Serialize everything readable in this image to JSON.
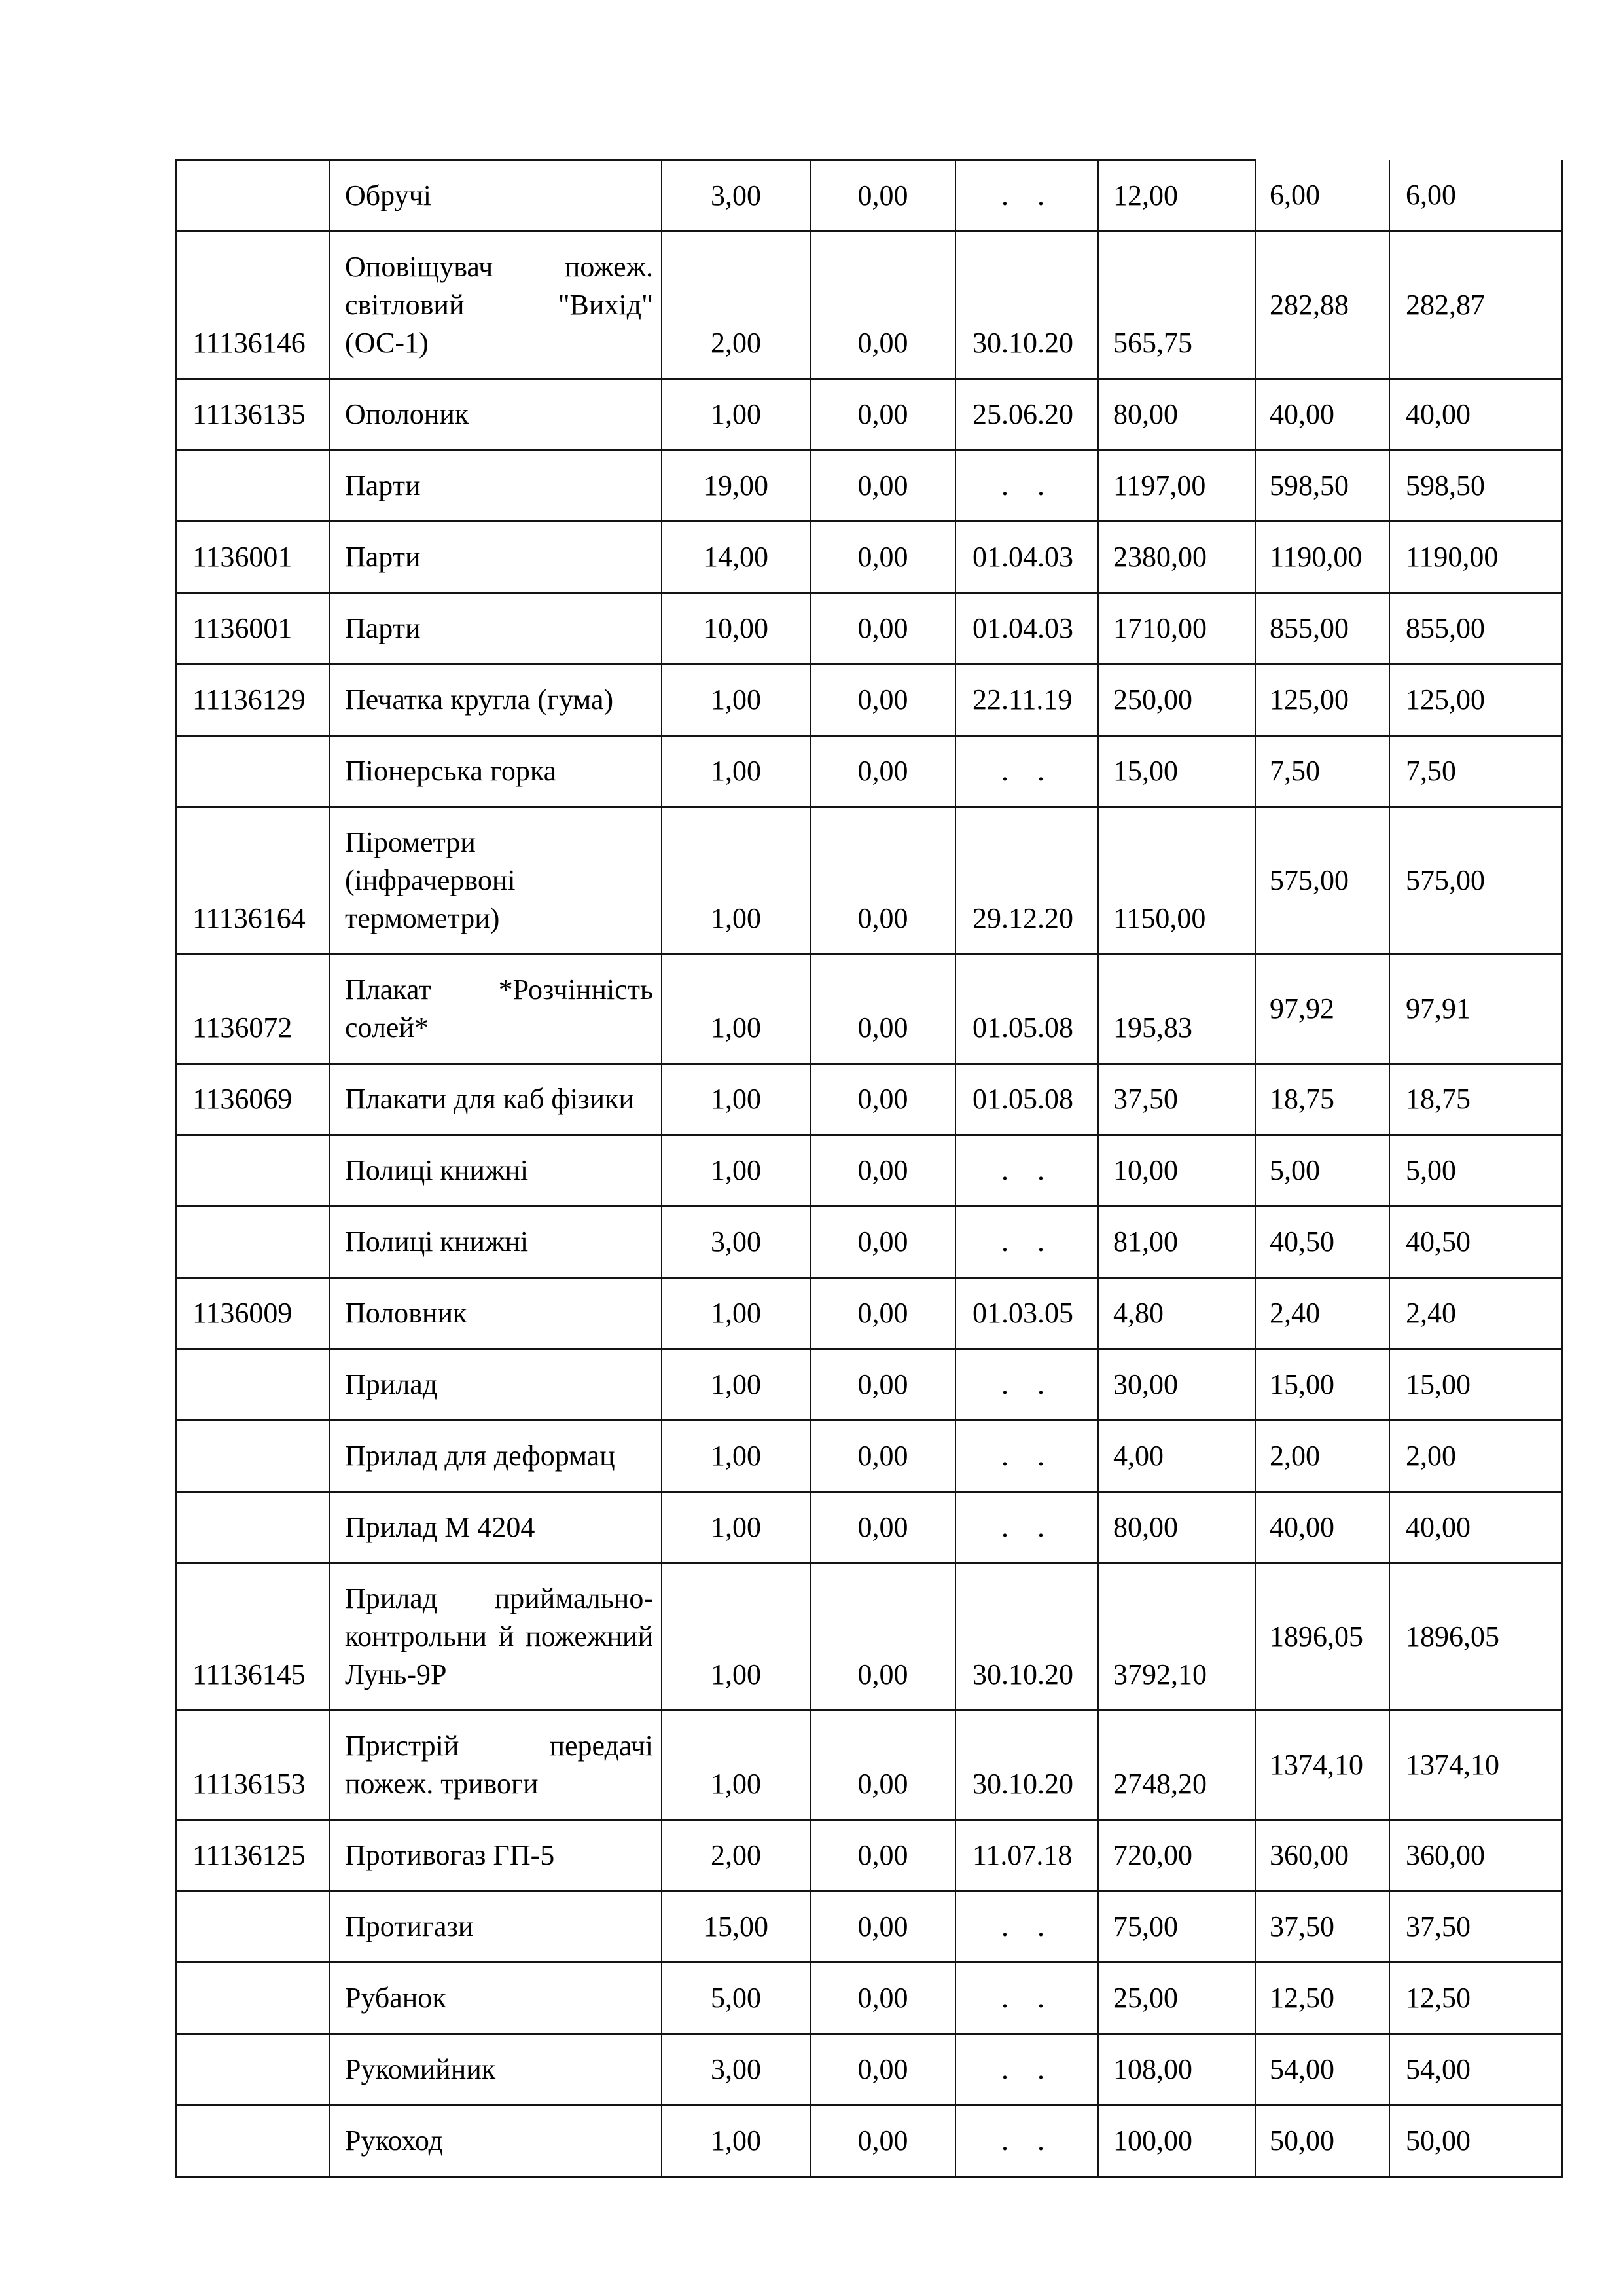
{
  "table": {
    "columns": [
      "code",
      "name",
      "qty",
      "zero",
      "date",
      "total",
      "half1",
      "half2"
    ],
    "rows": [
      {
        "code": "",
        "name": "Обручі",
        "qty": "3,00",
        "zero": "0,00",
        "date": "    .    .",
        "total": "12,00",
        "half1": "6,00",
        "half2": "6,00"
      },
      {
        "code": "11136146",
        "name": "Оповіщувач пожеж. світловий \"Вихід\" (ОС-1)",
        "qty": "2,00",
        "zero": "0,00",
        "date": "30.10.20",
        "total": "565,75",
        "half1": "282,88",
        "half2": "282,87"
      },
      {
        "code": "11136135",
        "name": "Ополоник",
        "qty": "1,00",
        "zero": "0,00",
        "date": "25.06.20",
        "total": "80,00",
        "half1": "40,00",
        "half2": "40,00"
      },
      {
        "code": "",
        "name": "Парти",
        "qty": "19,00",
        "zero": "0,00",
        "date": "    .    .",
        "total": "1197,00",
        "half1": "598,50",
        "half2": "598,50"
      },
      {
        "code": "1136001",
        "name": "Парти",
        "qty": "14,00",
        "zero": "0,00",
        "date": "01.04.03",
        "total": "2380,00",
        "half1": "1190,00",
        "half2": "1190,00"
      },
      {
        "code": "1136001",
        "name": "Парти",
        "qty": "10,00",
        "zero": "0,00",
        "date": "01.04.03",
        "total": "1710,00",
        "half1": "855,00",
        "half2": "855,00"
      },
      {
        "code": "11136129",
        "name": "Печатка кругла (гума)",
        "qty": "1,00",
        "zero": "0,00",
        "date": "22.11.19",
        "total": "250,00",
        "half1": "125,00",
        "half2": "125,00"
      },
      {
        "code": "",
        "name": "Піонерська горка",
        "qty": "1,00",
        "zero": "0,00",
        "date": "    .    .",
        "total": "15,00",
        "half1": "7,50",
        "half2": "7,50"
      },
      {
        "code": "11136164",
        "name": "Пірометри (інфрачервоні термометри)",
        "qty": "1,00",
        "zero": "0,00",
        "date": "29.12.20",
        "total": "1150,00",
        "half1": "575,00",
        "half2": "575,00"
      },
      {
        "code": "1136072",
        "name": "Плакат *Розчінність солей*",
        "qty": "1,00",
        "zero": "0,00",
        "date": "01.05.08",
        "total": "195,83",
        "half1": "97,92",
        "half2": "97,91"
      },
      {
        "code": "1136069",
        "name": "Плакати для каб фізики",
        "qty": "1,00",
        "zero": "0,00",
        "date": "01.05.08",
        "total": "37,50",
        "half1": "18,75",
        "half2": "18,75"
      },
      {
        "code": "",
        "name": "Полиці книжні",
        "qty": "1,00",
        "zero": "0,00",
        "date": "    .    .",
        "total": "10,00",
        "half1": "5,00",
        "half2": "5,00"
      },
      {
        "code": "",
        "name": "Полиці книжні",
        "qty": "3,00",
        "zero": "0,00",
        "date": "    .    .",
        "total": "81,00",
        "half1": "40,50",
        "half2": "40,50"
      },
      {
        "code": "1136009",
        "name": "Половник",
        "qty": "1,00",
        "zero": "0,00",
        "date": "01.03.05",
        "total": "4,80",
        "half1": "2,40",
        "half2": "2,40"
      },
      {
        "code": "",
        "name": "Прилад",
        "qty": "1,00",
        "zero": "0,00",
        "date": "    .    .",
        "total": "30,00",
        "half1": "15,00",
        "half2": "15,00"
      },
      {
        "code": "",
        "name": "Прилад для деформац",
        "qty": "1,00",
        "zero": "0,00",
        "date": "    .    .",
        "total": "4,00",
        "half1": "2,00",
        "half2": "2,00"
      },
      {
        "code": "",
        "name": "Прилад М 4204",
        "qty": "1,00",
        "zero": "0,00",
        "date": "    .    .",
        "total": "80,00",
        "half1": "40,00",
        "half2": "40,00"
      },
      {
        "code": "11136145",
        "name": "Прилад приймально-контрольни й пожежний Лунь-9Р",
        "qty": "1,00",
        "zero": "0,00",
        "date": "30.10.20",
        "total": "3792,10",
        "half1": "1896,05",
        "half2": "1896,05"
      },
      {
        "code": "11136153",
        "name": "Пристрій передачі пожеж. тривоги",
        "qty": "1,00",
        "zero": "0,00",
        "date": "30.10.20",
        "total": "2748,20",
        "half1": "1374,10",
        "half2": "1374,10"
      },
      {
        "code": "11136125",
        "name": "Противогаз ГП-5",
        "qty": "2,00",
        "zero": "0,00",
        "date": "11.07.18",
        "total": "720,00",
        "half1": "360,00",
        "half2": "360,00"
      },
      {
        "code": "",
        "name": "Протигази",
        "qty": "15,00",
        "zero": "0,00",
        "date": "    .    .",
        "total": "75,00",
        "half1": "37,50",
        "half2": "37,50"
      },
      {
        "code": "",
        "name": "Рубанок",
        "qty": "5,00",
        "zero": "0,00",
        "date": "    .    .",
        "total": "25,00",
        "half1": "12,50",
        "half2": "12,50"
      },
      {
        "code": "",
        "name": "Рукомийник",
        "qty": "3,00",
        "zero": "0,00",
        "date": "    .    .",
        "total": "108,00",
        "half1": "54,00",
        "half2": "54,00"
      },
      {
        "code": "",
        "name": "Рукоход",
        "qty": "1,00",
        "zero": "0,00",
        "date": "    .    .",
        "total": "100,00",
        "half1": "50,00",
        "half2": "50,00"
      }
    ]
  }
}
